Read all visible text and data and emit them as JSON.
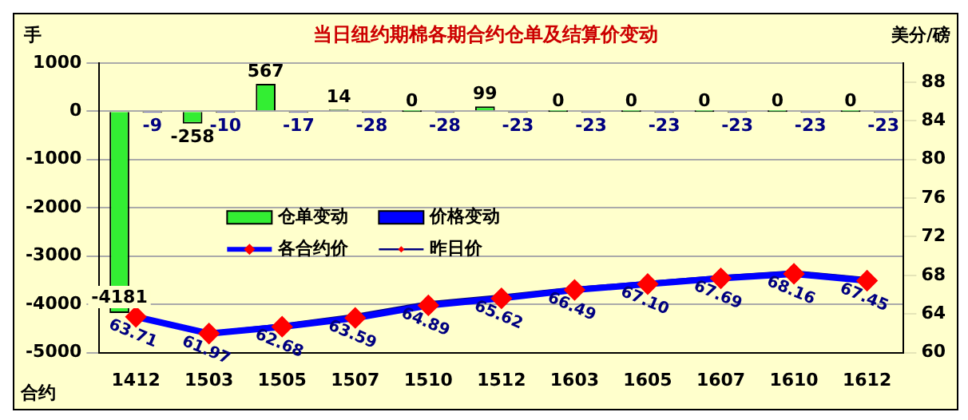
{
  "chart_data": {
    "type": "bar",
    "title": "当日纽约期棉各期合约仓单及结算价变动",
    "xlabel": "合约",
    "ylabel": "手",
    "y2label": "美分/磅",
    "categories": [
      "1412",
      "1503",
      "1505",
      "1507",
      "1510",
      "1512",
      "1603",
      "1605",
      "1607",
      "1610",
      "1612"
    ],
    "series": [
      {
        "name": "仓单变动",
        "color": "#33ee33",
        "values": [
          -4181,
          -258,
          567,
          14,
          0,
          99,
          0,
          0,
          0,
          0,
          0
        ],
        "value_labels": [
          "-4181",
          "-258",
          "567",
          "14",
          "0",
          "99",
          "0",
          "0",
          "0",
          "0",
          "0"
        ]
      },
      {
        "name": "价格变动",
        "color": "#0000ff",
        "values": [
          -9,
          -10,
          -17,
          -28,
          -28,
          -23,
          -23,
          -23,
          -23,
          -23,
          -23
        ],
        "value_labels": [
          "-9",
          "-10",
          "-17",
          "-28",
          "-28",
          "-23",
          "-23",
          "-23",
          "-23",
          "-23",
          "-23"
        ]
      },
      {
        "name": "各合约价",
        "type": "line",
        "axis": "y2",
        "color": "#0000ff",
        "marker": "diamond",
        "values": [
          63.71,
          61.97,
          62.68,
          63.59,
          64.89,
          65.62,
          66.49,
          67.1,
          67.69,
          68.16,
          67.45
        ],
        "value_labels": [
          "63.71",
          "61.97",
          "62.68",
          "63.59",
          "64.89",
          "65.62",
          "66.49",
          "67.10",
          "67.69",
          "68.16",
          "67.45"
        ]
      },
      {
        "name": "昨日价",
        "type": "line",
        "axis": "y2",
        "color": "#000080",
        "marker": "diamond",
        "values": [
          63.8,
          62.1,
          62.9,
          63.9,
          65.2,
          65.9,
          66.7,
          67.3,
          67.9,
          68.4,
          67.7
        ]
      }
    ],
    "ylim": [
      -5000,
      1000
    ],
    "yticks": [
      -5000,
      -4000,
      -3000,
      -2000,
      -1000,
      0,
      1000
    ],
    "y2lim": [
      60,
      90
    ],
    "y2ticks": [
      60,
      64,
      68,
      72,
      76,
      80,
      84,
      88
    ],
    "grid": "y",
    "legend": "center left"
  }
}
